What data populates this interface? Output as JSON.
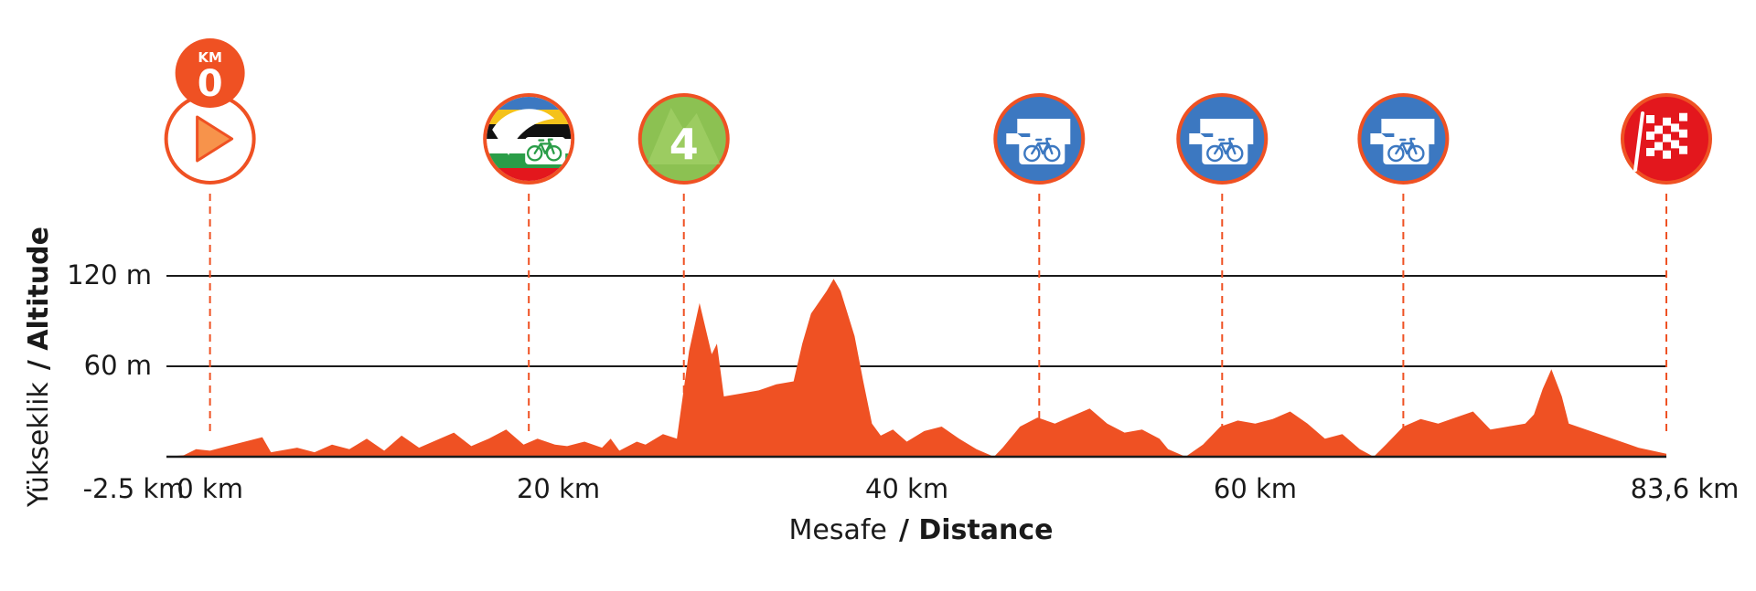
{
  "colors": {
    "accent": "#ef5123",
    "marker_blue": "#3c78c1",
    "climb_green": "#8cc152",
    "finish_red": "#e3171d",
    "gridline": "#1a1a1a",
    "text": "#1a1a1a"
  },
  "chart_data": {
    "type": "area",
    "x_axis": {
      "title_primary": "Mesafe",
      "title_secondary": "/ Distance",
      "range_km": [
        -2.5,
        83.6
      ],
      "ticks": [
        {
          "value": -2.5,
          "label": "-2.5 km"
        },
        {
          "value": 0,
          "label": "0 km"
        },
        {
          "value": 20,
          "label": "20 km"
        },
        {
          "value": 40,
          "label": "40 km"
        },
        {
          "value": 60,
          "label": "60 km"
        },
        {
          "value": 83.6,
          "label": "83,6 km"
        }
      ]
    },
    "y_axis": {
      "title_primary": "Yükseklik",
      "title_secondary": "/ Altitude",
      "range_m": [
        0,
        120
      ],
      "ticks": [
        {
          "value": 60,
          "label": "60 m"
        },
        {
          "value": 120,
          "label": "120 m"
        }
      ],
      "gridlines_at": [
        0,
        60,
        120
      ]
    },
    "series": [
      {
        "color": "#ef5123",
        "points": [
          [
            -2.5,
            0
          ],
          [
            -1.5,
            1
          ],
          [
            -0.8,
            5
          ],
          [
            0,
            4
          ],
          [
            1,
            7
          ],
          [
            2,
            10
          ],
          [
            3,
            13
          ],
          [
            3.5,
            3
          ],
          [
            5,
            6
          ],
          [
            6,
            3
          ],
          [
            7,
            8
          ],
          [
            8,
            5
          ],
          [
            9,
            12
          ],
          [
            10,
            4
          ],
          [
            11,
            14
          ],
          [
            12,
            6
          ],
          [
            13,
            11
          ],
          [
            14,
            16
          ],
          [
            15,
            7
          ],
          [
            16,
            12
          ],
          [
            17,
            18
          ],
          [
            18,
            8
          ],
          [
            18.8,
            12
          ],
          [
            19.8,
            8
          ],
          [
            20.5,
            7
          ],
          [
            21.5,
            10
          ],
          [
            22.5,
            6
          ],
          [
            23,
            12
          ],
          [
            23.5,
            4
          ],
          [
            24.5,
            10
          ],
          [
            25,
            8
          ],
          [
            26,
            15
          ],
          [
            26.8,
            12
          ],
          [
            27.5,
            70
          ],
          [
            28.1,
            102
          ],
          [
            28.8,
            68
          ],
          [
            29.1,
            75
          ],
          [
            29.5,
            40
          ],
          [
            30.5,
            42
          ],
          [
            31.5,
            44
          ],
          [
            32,
            46
          ],
          [
            32.5,
            48
          ],
          [
            33.5,
            50
          ],
          [
            34,
            75
          ],
          [
            34.5,
            95
          ],
          [
            35.4,
            110
          ],
          [
            35.8,
            118
          ],
          [
            36.2,
            110
          ],
          [
            37,
            80
          ],
          [
            37.5,
            50
          ],
          [
            38,
            22
          ],
          [
            38.5,
            14
          ],
          [
            39.2,
            18
          ],
          [
            40,
            10
          ],
          [
            41,
            17
          ],
          [
            42,
            20
          ],
          [
            43,
            12
          ],
          [
            44,
            5
          ],
          [
            45,
            0
          ],
          [
            45.5,
            6
          ],
          [
            46.5,
            20
          ],
          [
            47.5,
            26
          ],
          [
            48.5,
            22
          ],
          [
            49.5,
            27
          ],
          [
            50.5,
            32
          ],
          [
            51.5,
            22
          ],
          [
            52.5,
            16
          ],
          [
            53.5,
            18
          ],
          [
            54.5,
            12
          ],
          [
            55,
            5
          ],
          [
            56,
            0
          ],
          [
            57,
            8
          ],
          [
            58,
            20
          ],
          [
            59,
            24
          ],
          [
            60,
            22
          ],
          [
            61,
            25
          ],
          [
            62,
            30
          ],
          [
            63,
            22
          ],
          [
            64,
            12
          ],
          [
            65,
            15
          ],
          [
            66,
            5
          ],
          [
            66.8,
            0
          ],
          [
            67.5,
            8
          ],
          [
            68.5,
            20
          ],
          [
            69.5,
            25
          ],
          [
            70.5,
            22
          ],
          [
            71.5,
            26
          ],
          [
            72.5,
            30
          ],
          [
            73.5,
            18
          ],
          [
            74.5,
            20
          ],
          [
            75.5,
            22
          ],
          [
            76,
            28
          ],
          [
            76.5,
            45
          ],
          [
            77,
            58
          ],
          [
            77.6,
            40
          ],
          [
            78,
            22
          ],
          [
            80,
            14
          ],
          [
            82,
            6
          ],
          [
            83.6,
            2
          ]
        ]
      }
    ],
    "markers": [
      {
        "icon": "start-play-icon",
        "km": 0,
        "km_label_small": "KM",
        "km_label_big": "0"
      },
      {
        "icon": "intermediate-sprint-jersey-icon",
        "km": 18.3
      },
      {
        "icon": "category-4-climb-icon",
        "km": 27.2,
        "label": "4"
      },
      {
        "icon": "feed-zone-icon",
        "km": 47.6
      },
      {
        "icon": "feed-zone-icon",
        "km": 58.1
      },
      {
        "icon": "feed-zone-icon",
        "km": 68.5
      },
      {
        "icon": "finish-flag-icon",
        "km": 83.6
      }
    ]
  }
}
